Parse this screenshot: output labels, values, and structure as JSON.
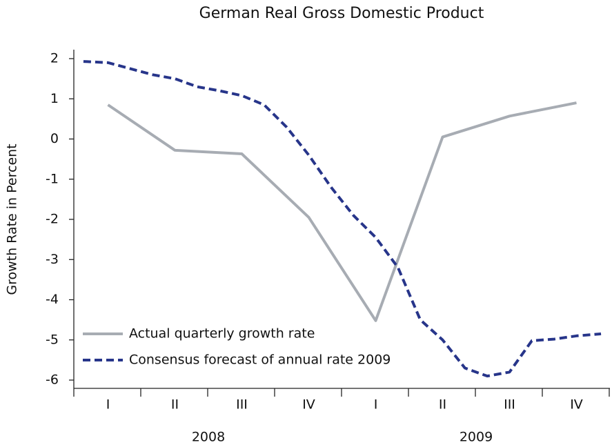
{
  "chart_data": {
    "type": "line",
    "title": "German Real Gross Domestic Product",
    "y_label": "Growth Rate in Percent",
    "categories": [
      "I",
      "II",
      "III",
      "IV",
      "I",
      "II",
      "III",
      "IV"
    ],
    "years": [
      "2008",
      "2009"
    ],
    "xlim": [
      0,
      24
    ],
    "ylim": [
      -6,
      2
    ],
    "yticks": [
      -6,
      -5,
      -4,
      -3,
      -2,
      -1,
      0,
      1,
      2
    ],
    "legend": "lower-left",
    "series": [
      {
        "name": "Actual quarterly growth rate",
        "color": "#a7acb3",
        "dashed": false,
        "x": [
          1.5,
          4.5,
          7.5,
          10.5,
          13.5,
          16.5,
          19.5,
          22.5
        ],
        "values": [
          0.85,
          -0.28,
          -0.37,
          -1.95,
          -4.52,
          0.05,
          0.57,
          0.9
        ]
      },
      {
        "name": "Consensus forecast of annual rate 2009",
        "color": "#27358a",
        "dashed": true,
        "x": [
          0.4,
          1.5,
          2.5,
          3.5,
          4.5,
          5.5,
          6.5,
          7.5,
          8.5,
          9.5,
          10.5,
          11.5,
          12.5,
          13.5,
          14.5,
          15.5,
          16.5,
          17.5,
          18.5,
          19.5,
          20.5,
          21.5,
          22.5,
          23.6
        ],
        "values": [
          1.93,
          1.9,
          1.75,
          1.6,
          1.5,
          1.3,
          1.2,
          1.08,
          0.85,
          0.3,
          -0.4,
          -1.2,
          -1.9,
          -2.45,
          -3.2,
          -4.5,
          -5.0,
          -5.7,
          -5.9,
          -5.8,
          -5.02,
          -4.98,
          -4.9,
          -4.85
        ]
      }
    ]
  }
}
